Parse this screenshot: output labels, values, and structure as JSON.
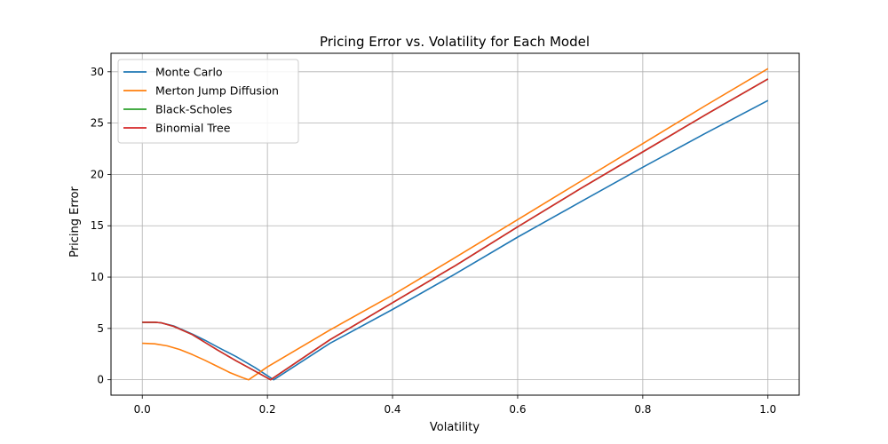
{
  "chart_data": {
    "type": "line",
    "title": "Pricing Error vs. Volatility for Each Model",
    "xlabel": "Volatility",
    "ylabel": "Pricing Error",
    "xlim": [
      -0.05,
      1.05
    ],
    "ylim": [
      -1.5,
      31.8
    ],
    "x_ticks": [
      0.0,
      0.2,
      0.4,
      0.6,
      0.8,
      1.0
    ],
    "x_tick_labels": [
      "0.0",
      "0.2",
      "0.4",
      "0.6",
      "0.8",
      "1.0"
    ],
    "y_ticks": [
      0,
      5,
      10,
      15,
      20,
      25,
      30
    ],
    "y_tick_labels": [
      "0",
      "5",
      "10",
      "15",
      "20",
      "25",
      "30"
    ],
    "grid": true,
    "legend_position": "upper-left",
    "series": [
      {
        "name": "Monte Carlo",
        "color": "#1f77b4",
        "x": [
          0.0,
          0.02,
          0.03,
          0.05,
          0.08,
          0.1,
          0.12,
          0.15,
          0.18,
          0.21,
          0.3,
          0.4,
          0.5,
          0.6,
          0.7,
          0.8,
          0.9,
          1.0
        ],
        "y": [
          5.6,
          5.6,
          5.55,
          5.25,
          4.45,
          3.85,
          3.2,
          2.25,
          1.2,
          0.0,
          3.55,
          6.85,
          10.3,
          13.9,
          17.3,
          20.7,
          24.0,
          27.2
        ]
      },
      {
        "name": "Merton Jump Diffusion",
        "color": "#ff7f0e",
        "x": [
          0.0,
          0.02,
          0.04,
          0.06,
          0.08,
          0.1,
          0.12,
          0.14,
          0.16,
          0.17,
          0.2,
          0.3,
          0.4,
          0.5,
          0.6,
          0.7,
          0.8,
          0.9,
          1.0
        ],
        "y": [
          3.55,
          3.5,
          3.3,
          2.95,
          2.45,
          1.9,
          1.3,
          0.7,
          0.2,
          0.0,
          1.25,
          4.85,
          8.25,
          11.9,
          15.6,
          19.3,
          23.0,
          26.7,
          30.3
        ]
      },
      {
        "name": "Black-Scholes",
        "color": "#2ca02c",
        "x": [
          0.0,
          0.02,
          0.03,
          0.05,
          0.08,
          0.1,
          0.12,
          0.15,
          0.18,
          0.205,
          0.3,
          0.4,
          0.5,
          0.6,
          0.7,
          0.8,
          0.9,
          1.0
        ],
        "y": [
          5.6,
          5.6,
          5.55,
          5.2,
          4.4,
          3.65,
          2.9,
          1.85,
          0.85,
          0.0,
          3.9,
          7.5,
          11.1,
          14.9,
          18.6,
          22.2,
          25.8,
          29.3
        ]
      },
      {
        "name": "Binomial Tree",
        "color": "#d62728",
        "x": [
          0.0,
          0.02,
          0.03,
          0.05,
          0.08,
          0.1,
          0.12,
          0.15,
          0.18,
          0.205,
          0.3,
          0.4,
          0.5,
          0.6,
          0.7,
          0.8,
          0.9,
          1.0
        ],
        "y": [
          5.6,
          5.6,
          5.55,
          5.2,
          4.4,
          3.65,
          2.9,
          1.85,
          0.85,
          0.0,
          3.9,
          7.5,
          11.1,
          14.9,
          18.6,
          22.2,
          25.8,
          29.3
        ]
      }
    ]
  }
}
